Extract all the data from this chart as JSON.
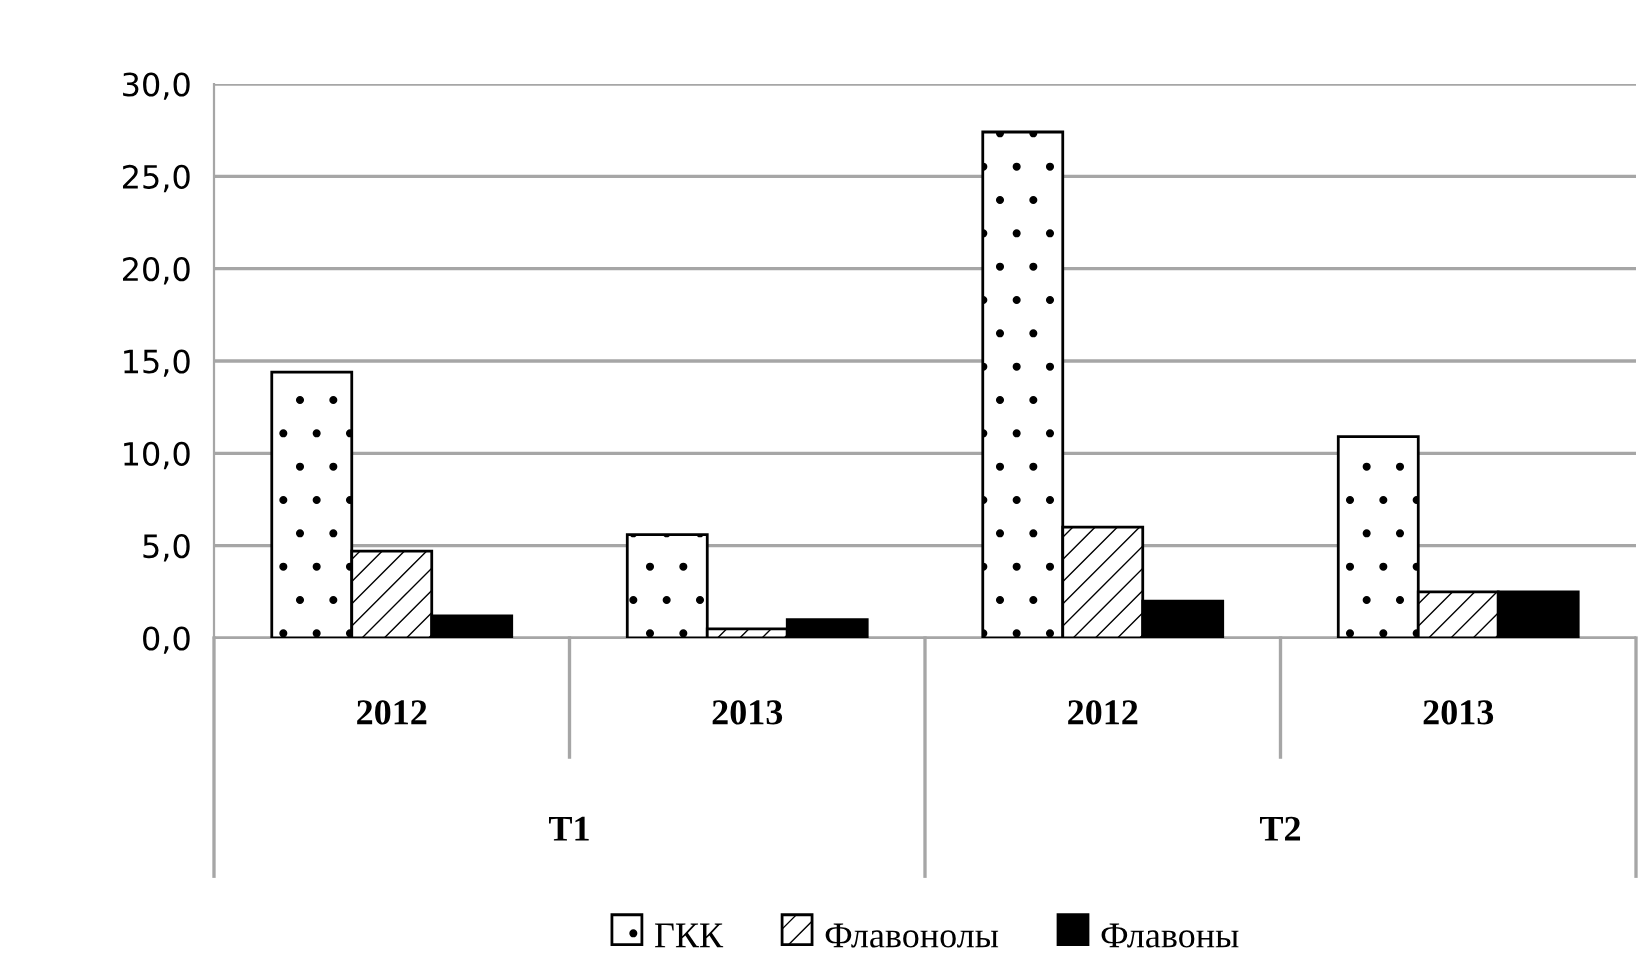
{
  "chart_data": {
    "type": "bar",
    "categories": [
      "2012",
      "2013",
      "2012",
      "2013"
    ],
    "series": [
      {
        "name": "ГКК",
        "color": "#ffffff",
        "values": [
          14.4,
          5.6,
          27.4,
          10.9
        ]
      },
      {
        "name": "Флавонолы",
        "color": "#ffffff",
        "values": [
          4.7,
          0.5,
          6.0,
          2.5
        ]
      },
      {
        "name": "Флавоны",
        "color": "#000000",
        "values": [
          1.2,
          1.0,
          2.0,
          2.5
        ]
      }
    ],
    "annotations": [
      "T1",
      "T2"
    ],
    "ylim": [
      0,
      30
    ],
    "yticks": [
      {
        "value": 0,
        "label": "0,0"
      },
      {
        "value": 5,
        "label": "5,0"
      },
      {
        "value": 10,
        "label": "10,0"
      },
      {
        "value": 15,
        "label": "15,0"
      },
      {
        "value": 20,
        "label": "20,0"
      },
      {
        "value": 25,
        "label": "25,0"
      },
      {
        "value": 30,
        "label": "30,0"
      }
    ],
    "grid": "y",
    "legend": "bottom"
  }
}
